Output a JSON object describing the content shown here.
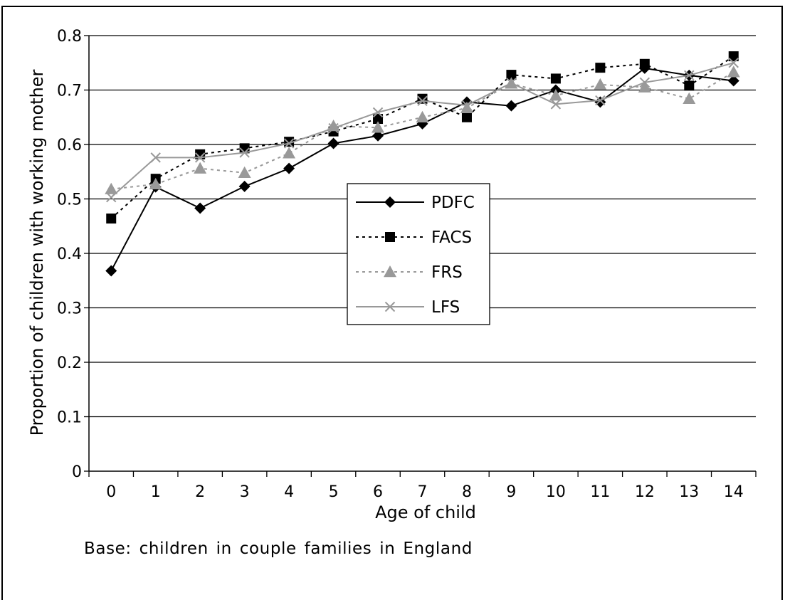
{
  "chart_data": {
    "type": "line",
    "title": "",
    "xlabel": "Age of child",
    "ylabel": "Proportion of children with working mother",
    "categories": [
      "0",
      "1",
      "2",
      "3",
      "4",
      "5",
      "6",
      "7",
      "8",
      "9",
      "10",
      "11",
      "12",
      "13",
      "14"
    ],
    "ylim": [
      0,
      0.8
    ],
    "yticks": [
      "0",
      "0.1",
      "0.2",
      "0.3",
      "0.4",
      "0.5",
      "0.6",
      "0.7",
      "0.8"
    ],
    "ytick_values": [
      0,
      0.1,
      0.2,
      0.3,
      0.4,
      0.5,
      0.6,
      0.7,
      0.8
    ],
    "grid": true,
    "legend_position": "center",
    "series": [
      {
        "name": "PDFC",
        "color": "#000000",
        "line": "solid",
        "marker": "diamond",
        "values": [
          0.368,
          0.522,
          0.483,
          0.523,
          0.556,
          0.602,
          0.616,
          0.638,
          0.678,
          0.671,
          0.7,
          0.678,
          0.74,
          0.727,
          0.717
        ]
      },
      {
        "name": "FACS",
        "color": "#000000",
        "line": "dotted",
        "marker": "square",
        "values": [
          0.464,
          0.537,
          0.582,
          0.593,
          0.605,
          0.624,
          0.647,
          0.684,
          0.65,
          0.728,
          0.721,
          0.741,
          0.748,
          0.708,
          0.762
        ]
      },
      {
        "name": "FRS",
        "color": "#999999",
        "line": "dotted",
        "marker": "triangle",
        "values": [
          0.518,
          0.527,
          0.556,
          0.548,
          0.584,
          0.634,
          0.631,
          0.65,
          0.667,
          0.712,
          0.69,
          0.71,
          0.705,
          0.684,
          0.733
        ]
      },
      {
        "name": "LFS",
        "color": "#999999",
        "line": "solid",
        "marker": "x",
        "values": [
          0.503,
          0.576,
          0.576,
          0.585,
          0.602,
          0.63,
          0.659,
          0.68,
          0.672,
          0.713,
          0.674,
          0.681,
          0.714,
          0.727,
          0.75
        ]
      }
    ]
  },
  "note": "Base: children in couple families in England"
}
